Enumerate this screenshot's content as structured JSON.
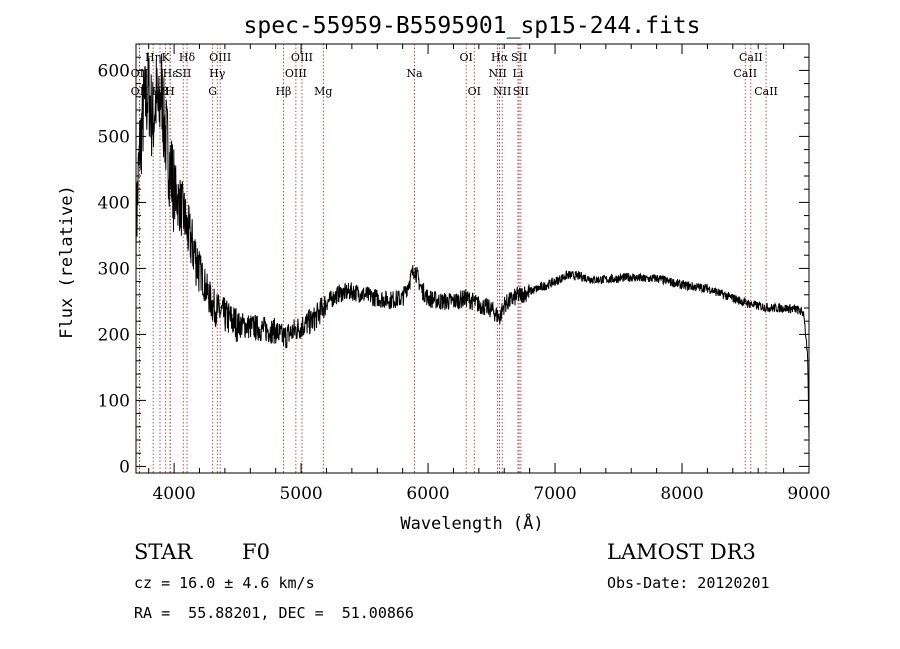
{
  "chart_data": {
    "type": "line",
    "title": "spec-55959-B5595901_sp15-244.fits",
    "xlabel": "Wavelength (Å)",
    "ylabel": "Flux (relative)",
    "xlim": [
      3700,
      9000
    ],
    "ylim": [
      -10,
      640
    ],
    "xticks": [
      4000,
      5000,
      6000,
      7000,
      8000,
      9000
    ],
    "yticks": [
      0,
      100,
      200,
      300,
      400,
      500,
      600
    ],
    "grid": false,
    "line_color": "#000000",
    "marker_color": "#b22222",
    "spectrum_anchors": [
      [
        3700,
        360
      ],
      [
        3730,
        480
      ],
      [
        3760,
        540
      ],
      [
        3800,
        570
      ],
      [
        3830,
        520
      ],
      [
        3860,
        560
      ],
      [
        3880,
        530
      ],
      [
        3900,
        580
      ],
      [
        3920,
        520
      ],
      [
        3950,
        480
      ],
      [
        3980,
        440
      ],
      [
        4000,
        420
      ],
      [
        4040,
        400
      ],
      [
        4080,
        380
      ],
      [
        4100,
        360
      ],
      [
        4150,
        330
      ],
      [
        4200,
        300
      ],
      [
        4250,
        270
      ],
      [
        4300,
        245
      ],
      [
        4350,
        235
      ],
      [
        4400,
        228
      ],
      [
        4500,
        215
      ],
      [
        4600,
        212
      ],
      [
        4700,
        208
      ],
      [
        4800,
        205
      ],
      [
        4861,
        195
      ],
      [
        4900,
        200
      ],
      [
        5000,
        212
      ],
      [
        5100,
        222
      ],
      [
        5200,
        248
      ],
      [
        5300,
        262
      ],
      [
        5400,
        265
      ],
      [
        5500,
        260
      ],
      [
        5600,
        255
      ],
      [
        5700,
        252
      ],
      [
        5800,
        255
      ],
      [
        5893,
        300
      ],
      [
        5950,
        268
      ],
      [
        6000,
        255
      ],
      [
        6100,
        250
      ],
      [
        6200,
        250
      ],
      [
        6300,
        255
      ],
      [
        6400,
        245
      ],
      [
        6500,
        238
      ],
      [
        6563,
        225
      ],
      [
        6600,
        245
      ],
      [
        6700,
        258
      ],
      [
        6800,
        265
      ],
      [
        6900,
        272
      ],
      [
        7000,
        280
      ],
      [
        7100,
        290
      ],
      [
        7200,
        288
      ],
      [
        7300,
        283
      ],
      [
        7400,
        283
      ],
      [
        7500,
        285
      ],
      [
        7600,
        287
      ],
      [
        7700,
        284
      ],
      [
        7800,
        285
      ],
      [
        7900,
        280
      ],
      [
        8000,
        275
      ],
      [
        8100,
        272
      ],
      [
        8200,
        270
      ],
      [
        8300,
        262
      ],
      [
        8400,
        255
      ],
      [
        8500,
        248
      ],
      [
        8600,
        243
      ],
      [
        8700,
        240
      ],
      [
        8800,
        240
      ],
      [
        8900,
        238
      ],
      [
        8960,
        232
      ],
      [
        8990,
        160
      ],
      [
        9000,
        40
      ]
    ],
    "line_markers": [
      {
        "label": "Hα",
        "wave": 6563,
        "row": 1
      },
      {
        "label": "Hβ",
        "wave": 4861,
        "row": 3
      },
      {
        "label": "Hγ",
        "wave": 4340,
        "row": 2
      },
      {
        "label": "Hδ",
        "wave": 4102,
        "row": 1
      },
      {
        "label": "Hε",
        "wave": 3970,
        "row": 2
      },
      {
        "label": "H8",
        "wave": 3889,
        "row": 3
      },
      {
        "label": "Hη",
        "wave": 3835,
        "row": 1
      },
      {
        "label": "K",
        "wave": 3934,
        "row": 1
      },
      {
        "label": "H",
        "wave": 3968,
        "row": 3
      },
      {
        "label": "G",
        "wave": 4304,
        "row": 3
      },
      {
        "label": "Mg",
        "wave": 5175,
        "row": 3
      },
      {
        "label": "Na",
        "wave": 5893,
        "row": 2
      },
      {
        "label": "OII",
        "wave": 3727,
        "row": 2
      },
      {
        "label": "OII",
        "wave": 3727,
        "row": 3
      },
      {
        "label": "OIII",
        "wave": 4363,
        "row": 1
      },
      {
        "label": "OIII",
        "wave": 4959,
        "row": 2
      },
      {
        "label": "OIII",
        "wave": 5007,
        "row": 1
      },
      {
        "label": "OI",
        "wave": 6300,
        "row": 1
      },
      {
        "label": "OI",
        "wave": 6364,
        "row": 3
      },
      {
        "label": "NII",
        "wave": 6548,
        "row": 2
      },
      {
        "label": "NII",
        "wave": 6584,
        "row": 3
      },
      {
        "label": "SII",
        "wave": 4072,
        "row": 2
      },
      {
        "label": "SII",
        "wave": 6717,
        "row": 1
      },
      {
        "label": "SII",
        "wave": 6731,
        "row": 3
      },
      {
        "label": "Li",
        "wave": 6708,
        "row": 2
      },
      {
        "label": "CaII",
        "wave": 8498,
        "row": 2
      },
      {
        "label": "CaII",
        "wave": 8542,
        "row": 1
      },
      {
        "label": "CaII",
        "wave": 8662,
        "row": 3
      }
    ]
  },
  "info": {
    "object_class": "STAR",
    "subclass": "F0",
    "survey": "LAMOST DR3",
    "cz": "cz = 16.0 ± 4.6 km/s",
    "obs_date": "Obs-Date: 20120201",
    "coords": "RA =  55.88201, DEC =  51.00866"
  }
}
